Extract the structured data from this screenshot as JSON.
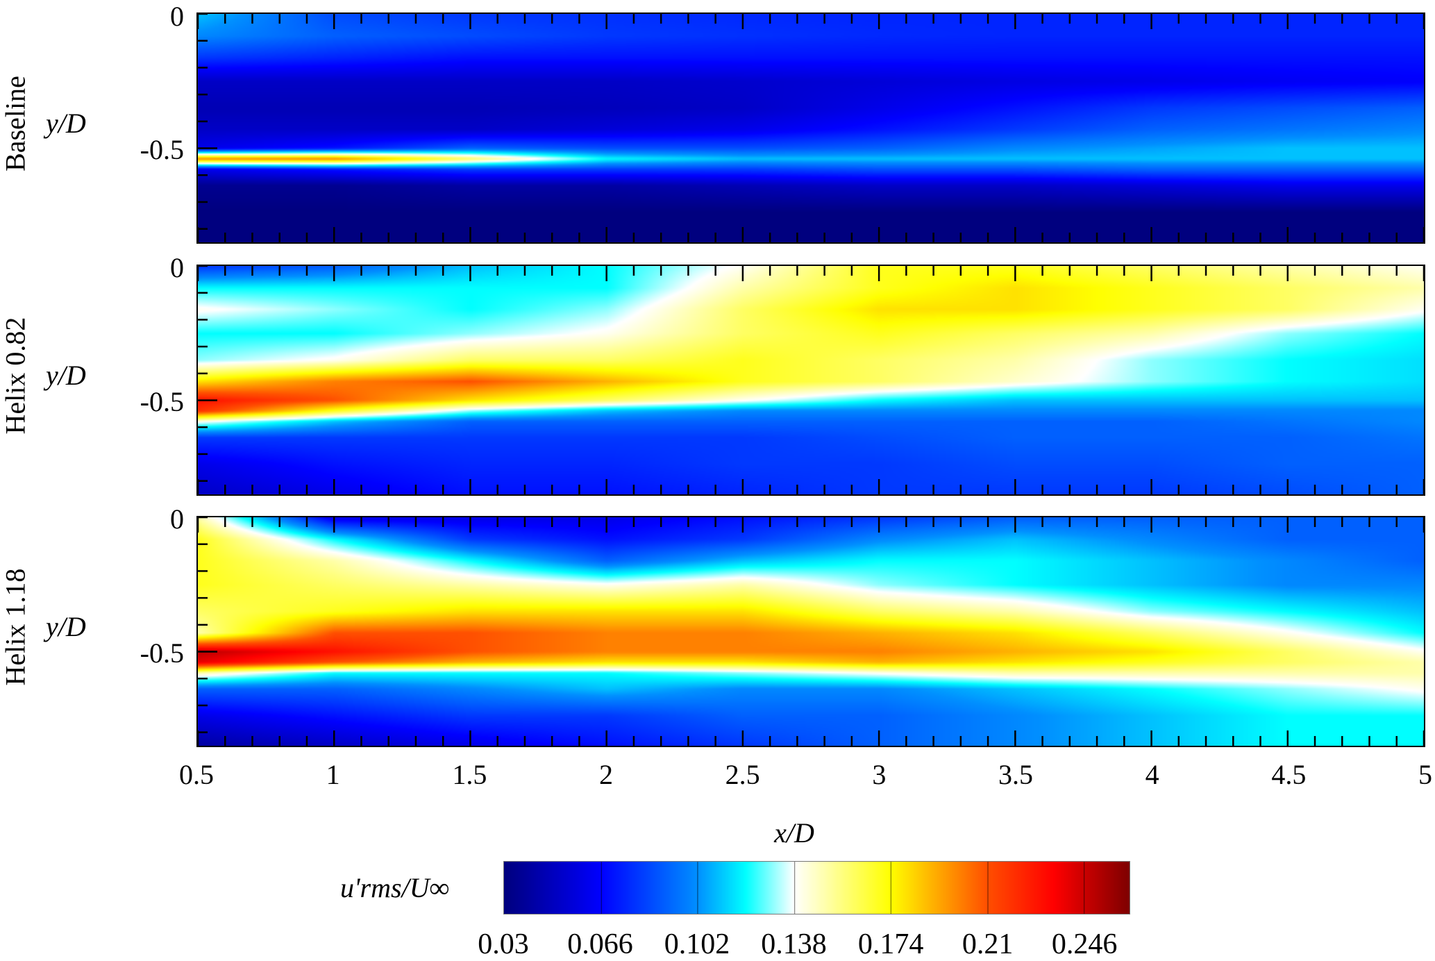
{
  "chart_data": {
    "type": "heatmap",
    "xlabel": "x/D",
    "ylabel": "y/D",
    "xlim": [
      0.5,
      5
    ],
    "ylim": [
      -0.85,
      0
    ],
    "x_ticks": [
      "0.5",
      "1",
      "1.5",
      "2",
      "2.5",
      "3",
      "3.5",
      "4",
      "4.5",
      "5"
    ],
    "y_ticks": [
      "0",
      "-0.5"
    ],
    "colorbar": {
      "label": "u'rms/U∞",
      "range": [
        0.03,
        0.263
      ],
      "ticks": [
        "0.03",
        "0.066",
        "0.102",
        "0.138",
        "0.174",
        "0.21",
        "0.246"
      ],
      "colormap": [
        [
          0.03,
          "#00007f"
        ],
        [
          0.066,
          "#0000ff"
        ],
        [
          0.102,
          "#0090ff"
        ],
        [
          0.12,
          "#00ffff"
        ],
        [
          0.138,
          "#ffffff"
        ],
        [
          0.174,
          "#ffff00"
        ],
        [
          0.21,
          "#ff5000"
        ],
        [
          0.235,
          "#ff0000"
        ],
        [
          0.263,
          "#7f0000"
        ]
      ]
    },
    "grid_x": [
      0.5,
      1,
      1.5,
      2,
      2.5,
      3,
      3.5,
      4,
      4.5,
      5
    ],
    "grid_y": [
      0,
      -0.08,
      -0.16,
      -0.25,
      -0.35,
      -0.43,
      -0.5,
      -0.54,
      -0.58,
      -0.64,
      -0.74,
      -0.85
    ],
    "panels": [
      {
        "name": "Baseline",
        "values": [
          [
            0.11,
            0.085,
            0.08,
            0.078,
            0.076,
            0.075,
            0.075,
            0.075,
            0.075,
            0.075
          ],
          [
            0.1,
            0.09,
            0.085,
            0.08,
            0.078,
            0.076,
            0.075,
            0.075,
            0.075,
            0.075
          ],
          [
            0.08,
            0.075,
            0.07,
            0.07,
            0.07,
            0.07,
            0.07,
            0.07,
            0.07,
            0.07
          ],
          [
            0.05,
            0.05,
            0.05,
            0.05,
            0.052,
            0.055,
            0.058,
            0.06,
            0.063,
            0.065
          ],
          [
            0.045,
            0.045,
            0.045,
            0.047,
            0.05,
            0.06,
            0.07,
            0.08,
            0.085,
            0.09
          ],
          [
            0.05,
            0.05,
            0.05,
            0.055,
            0.06,
            0.07,
            0.08,
            0.09,
            0.095,
            0.1
          ],
          [
            0.06,
            0.07,
            0.09,
            0.085,
            0.085,
            0.09,
            0.1,
            0.105,
            0.11,
            0.11
          ],
          [
            0.2,
            0.2,
            0.16,
            0.12,
            0.11,
            0.11,
            0.11,
            0.11,
            0.11,
            0.11
          ],
          [
            0.06,
            0.07,
            0.08,
            0.08,
            0.08,
            0.085,
            0.085,
            0.09,
            0.09,
            0.09
          ],
          [
            0.035,
            0.035,
            0.04,
            0.04,
            0.045,
            0.05,
            0.05,
            0.055,
            0.06,
            0.06
          ],
          [
            0.03,
            0.03,
            0.03,
            0.03,
            0.03,
            0.03,
            0.03,
            0.03,
            0.03,
            0.03
          ],
          [
            0.03,
            0.03,
            0.03,
            0.03,
            0.03,
            0.03,
            0.03,
            0.03,
            0.03,
            0.03
          ]
        ]
      },
      {
        "name": "Helix 0.82",
        "values": [
          [
            0.08,
            0.09,
            0.11,
            0.12,
            0.14,
            0.17,
            0.17,
            0.16,
            0.15,
            0.14
          ],
          [
            0.12,
            0.12,
            0.12,
            0.12,
            0.15,
            0.17,
            0.18,
            0.17,
            0.16,
            0.15
          ],
          [
            0.14,
            0.13,
            0.12,
            0.13,
            0.16,
            0.18,
            0.18,
            0.17,
            0.16,
            0.14
          ],
          [
            0.12,
            0.12,
            0.13,
            0.14,
            0.16,
            0.17,
            0.16,
            0.15,
            0.13,
            0.12
          ],
          [
            0.13,
            0.14,
            0.16,
            0.16,
            0.17,
            0.16,
            0.15,
            0.13,
            0.12,
            0.115
          ],
          [
            0.18,
            0.2,
            0.21,
            0.19,
            0.17,
            0.16,
            0.145,
            0.13,
            0.12,
            0.115
          ],
          [
            0.23,
            0.21,
            0.18,
            0.16,
            0.14,
            0.12,
            0.11,
            0.11,
            0.11,
            0.11
          ],
          [
            0.22,
            0.17,
            0.13,
            0.11,
            0.1,
            0.1,
            0.1,
            0.1,
            0.1,
            0.1
          ],
          [
            0.14,
            0.11,
            0.09,
            0.09,
            0.09,
            0.09,
            0.09,
            0.09,
            0.095,
            0.1
          ],
          [
            0.08,
            0.08,
            0.08,
            0.08,
            0.08,
            0.085,
            0.09,
            0.09,
            0.09,
            0.095
          ],
          [
            0.06,
            0.07,
            0.075,
            0.075,
            0.08,
            0.08,
            0.085,
            0.085,
            0.09,
            0.09
          ],
          [
            0.05,
            0.06,
            0.07,
            0.07,
            0.075,
            0.08,
            0.08,
            0.08,
            0.085,
            0.09
          ]
        ]
      },
      {
        "name": "Helix 1.18",
        "values": [
          [
            0.15,
            0.06,
            0.06,
            0.06,
            0.07,
            0.08,
            0.09,
            0.09,
            0.09,
            0.09
          ],
          [
            0.17,
            0.12,
            0.08,
            0.07,
            0.08,
            0.1,
            0.11,
            0.1,
            0.09,
            0.09
          ],
          [
            0.17,
            0.15,
            0.12,
            0.09,
            0.11,
            0.12,
            0.12,
            0.11,
            0.1,
            0.09
          ],
          [
            0.17,
            0.16,
            0.15,
            0.14,
            0.15,
            0.13,
            0.12,
            0.11,
            0.1,
            0.1
          ],
          [
            0.16,
            0.17,
            0.18,
            0.18,
            0.18,
            0.16,
            0.15,
            0.13,
            0.12,
            0.11
          ],
          [
            0.15,
            0.21,
            0.21,
            0.2,
            0.2,
            0.19,
            0.18,
            0.16,
            0.14,
            0.12
          ],
          [
            0.25,
            0.23,
            0.21,
            0.2,
            0.2,
            0.2,
            0.19,
            0.18,
            0.16,
            0.14
          ],
          [
            0.24,
            0.21,
            0.19,
            0.18,
            0.18,
            0.19,
            0.18,
            0.17,
            0.16,
            0.15
          ],
          [
            0.15,
            0.12,
            0.12,
            0.12,
            0.13,
            0.14,
            0.15,
            0.15,
            0.15,
            0.15
          ],
          [
            0.09,
            0.09,
            0.1,
            0.11,
            0.1,
            0.1,
            0.11,
            0.12,
            0.13,
            0.14
          ],
          [
            0.06,
            0.07,
            0.08,
            0.08,
            0.09,
            0.09,
            0.1,
            0.11,
            0.12,
            0.12
          ],
          [
            0.04,
            0.05,
            0.06,
            0.07,
            0.08,
            0.09,
            0.1,
            0.11,
            0.12,
            0.12
          ]
        ]
      }
    ]
  }
}
